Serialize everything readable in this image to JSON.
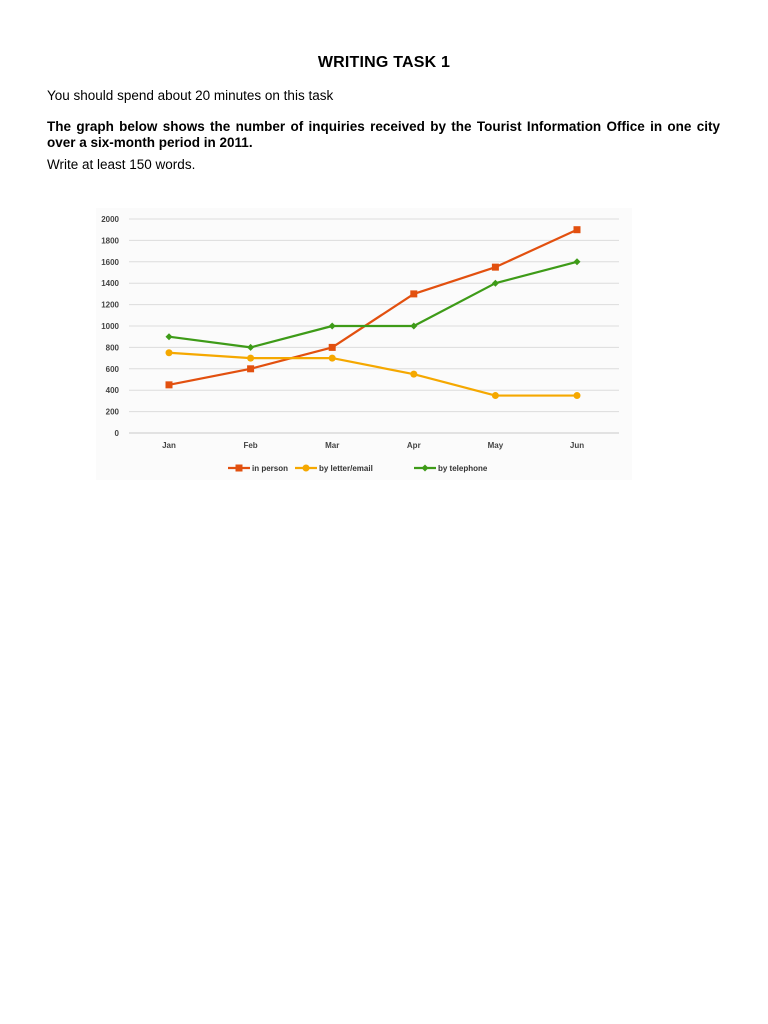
{
  "page": {
    "title": "WRITING TASK 1",
    "instruction": "You should spend about 20 minutes on this task",
    "prompt": "The graph below shows the number of inquiries received by the Tourist Information Office in one city over a six-month period in 2011.",
    "word_count": "Write at least 150 words."
  },
  "chart_data": {
    "type": "line",
    "title": "",
    "xlabel": "",
    "ylabel": "",
    "categories": [
      "Jan",
      "Feb",
      "Mar",
      "Apr",
      "May",
      "Jun"
    ],
    "ylim": [
      0,
      2000
    ],
    "yticks": [
      0,
      200,
      400,
      600,
      800,
      1000,
      1200,
      1400,
      1600,
      1800,
      2000
    ],
    "grid": true,
    "legend_position": "bottom",
    "series": [
      {
        "name": "in person",
        "color": "#e2500f",
        "marker": "square",
        "values": [
          450,
          600,
          800,
          1300,
          1550,
          1900
        ]
      },
      {
        "name": "by letter/email",
        "color": "#f5a800",
        "marker": "circle",
        "values": [
          750,
          700,
          700,
          550,
          350,
          350
        ]
      },
      {
        "name": "by telephone",
        "color": "#3e9b18",
        "marker": "diamond",
        "values": [
          900,
          800,
          1000,
          1000,
          1400,
          1600
        ]
      }
    ]
  }
}
